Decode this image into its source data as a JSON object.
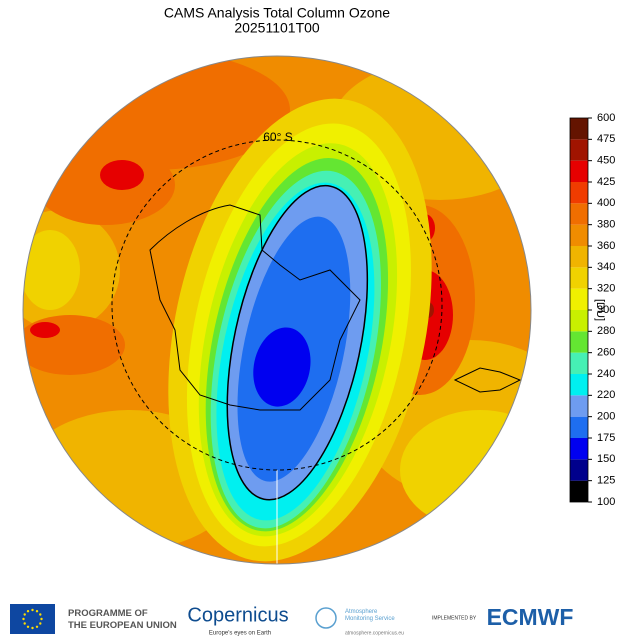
{
  "title": "CAMS Analysis  Total Column Ozone",
  "subtitle": "20251101T00",
  "map": {
    "circle_label": "60° S"
  },
  "colorbar": {
    "label": "[DU]",
    "ticks": [
      100,
      125,
      150,
      175,
      200,
      220,
      240,
      260,
      280,
      300,
      320,
      340,
      360,
      380,
      400,
      425,
      450,
      475,
      600
    ],
    "colors": [
      "#000000",
      "#00008c",
      "#0000f0",
      "#1e6ef0",
      "#6e9cf0",
      "#00f0f0",
      "#46f0b4",
      "#64e632",
      "#c8f000",
      "#f0f000",
      "#f0d200",
      "#f0b400",
      "#f08c00",
      "#f06e00",
      "#f03c00",
      "#e60000",
      "#a01400",
      "#641400"
    ]
  },
  "footer": {
    "eu_text": "PROGRAMME OF\nTHE EUROPEAN UNION",
    "copernicus": "Copernicus",
    "copernicus_tagline": "Europe's eyes on Earth",
    "cams_name": "Atmosphere\nMonitoring Service",
    "cams_url": "atmosphere.copernicus.eu",
    "implemented_by": "IMPLEMENTED BY",
    "ecmwf": "ECMWF"
  }
}
